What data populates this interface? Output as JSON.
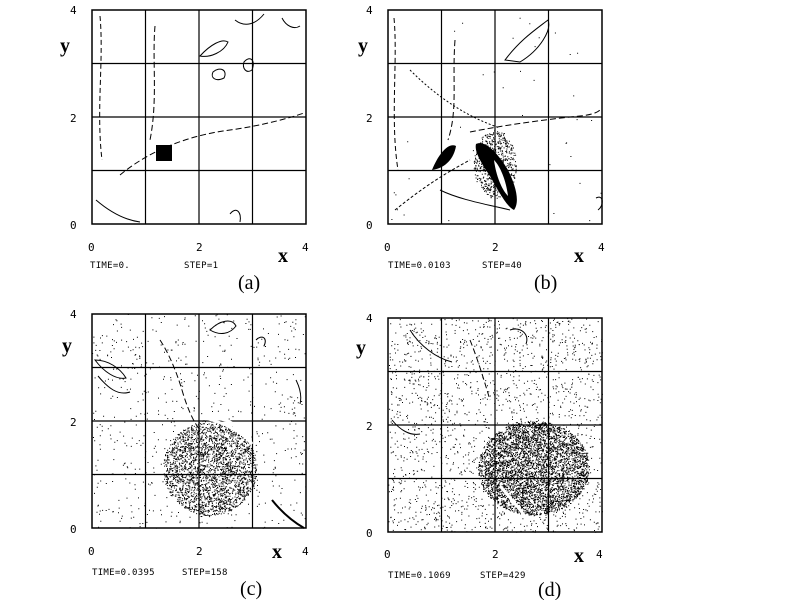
{
  "panels": [
    {
      "id": "a",
      "caption": "(a)",
      "time_text": "TIME=0.",
      "step_text": "STEP=1",
      "x_label": "x",
      "y_label": "y",
      "x_ticks": [
        "0",
        "2",
        "4"
      ],
      "y_ticks": [
        "0",
        "2",
        "4"
      ],
      "particle_density": 0
    },
    {
      "id": "b",
      "caption": "(b)",
      "time_text": "TIME=0.0103",
      "step_text": "STEP=40",
      "x_label": "x",
      "y_label": "y",
      "x_ticks": [
        "0",
        "2",
        "4"
      ],
      "y_ticks": [
        "0",
        "2",
        "4"
      ],
      "particle_density": 0.15
    },
    {
      "id": "c",
      "caption": "(c)",
      "time_text": "TIME=0.0395",
      "step_text": "STEP=158",
      "x_label": "x",
      "y_label": "y",
      "x_ticks": [
        "0",
        "2",
        "4"
      ],
      "y_ticks": [
        "0",
        "2",
        "4"
      ],
      "particle_density": 0.6
    },
    {
      "id": "d",
      "caption": "(d)",
      "time_text": "TIME=0.1069",
      "step_text": "STEP=429",
      "x_label": "x",
      "y_label": "y",
      "x_ticks": [
        "0",
        "2",
        "4"
      ],
      "y_ticks": [
        "0",
        "2",
        "4"
      ],
      "particle_density": 1.0
    }
  ],
  "colors": {
    "ink": "#000000",
    "paper": "#ffffff"
  }
}
